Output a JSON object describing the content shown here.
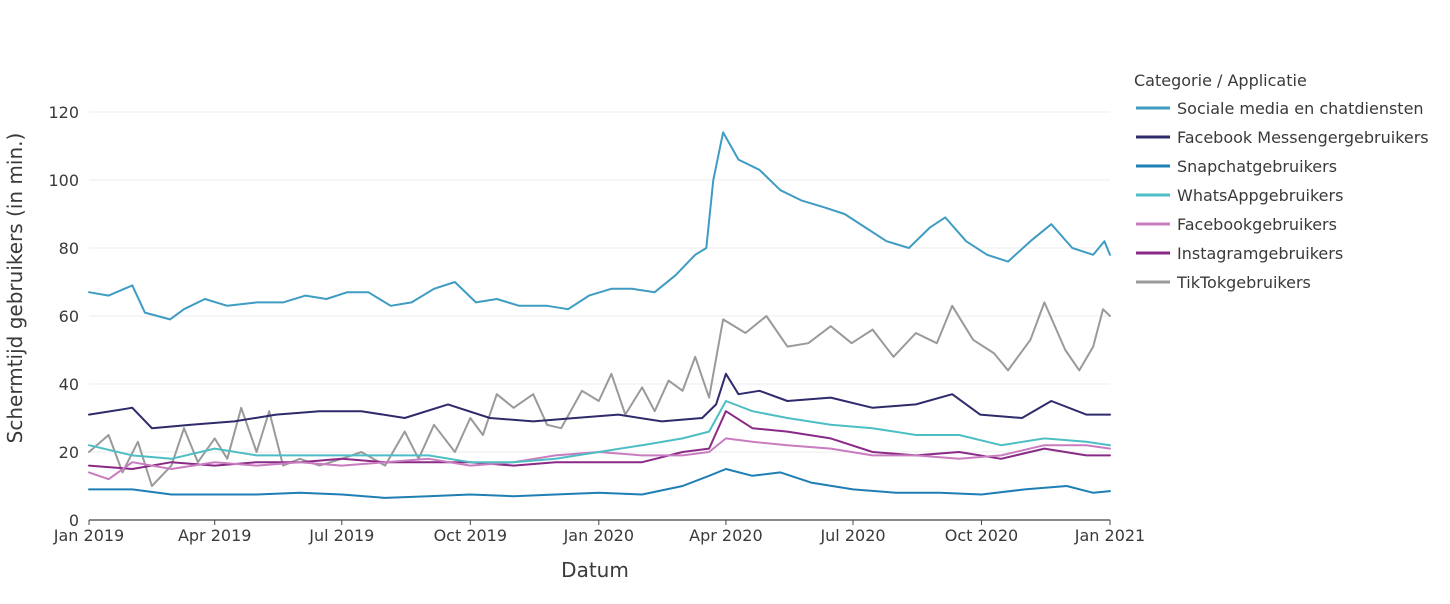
{
  "chart_data": {
    "type": "line",
    "xlabel": "Datum",
    "ylabel": "Schermtijd gebruikers (in min.)",
    "x_range": [
      "2019-01-01",
      "2021-01-01"
    ],
    "ylim": [
      0,
      120
    ],
    "y_ticks": [
      0,
      20,
      40,
      60,
      80,
      100,
      120
    ],
    "x_ticks": [
      {
        "date": "2019-01-01",
        "label": "Jan 2019"
      },
      {
        "date": "2019-04-01",
        "label": "Apr 2019"
      },
      {
        "date": "2019-07-01",
        "label": "Jul 2019"
      },
      {
        "date": "2019-10-01",
        "label": "Oct 2019"
      },
      {
        "date": "2020-01-01",
        "label": "Jan 2020"
      },
      {
        "date": "2020-04-01",
        "label": "Apr 2020"
      },
      {
        "date": "2020-07-01",
        "label": "Jul 2020"
      },
      {
        "date": "2020-10-01",
        "label": "Oct 2020"
      },
      {
        "date": "2021-01-01",
        "label": "Jan 2021"
      }
    ],
    "grid": true,
    "legend": {
      "title": "Categorie / Applicatie",
      "position": "right"
    },
    "series": [
      {
        "name": "Sociale media en chatdiensten",
        "color": "#3f9cc2",
        "points": [
          [
            "2019-01-01",
            67
          ],
          [
            "2019-01-15",
            66
          ],
          [
            "2019-02-01",
            69
          ],
          [
            "2019-02-10",
            61
          ],
          [
            "2019-02-28",
            59
          ],
          [
            "2019-03-10",
            62
          ],
          [
            "2019-03-25",
            65
          ],
          [
            "2019-04-10",
            63
          ],
          [
            "2019-05-01",
            64
          ],
          [
            "2019-05-20",
            64
          ],
          [
            "2019-06-05",
            66
          ],
          [
            "2019-06-20",
            65
          ],
          [
            "2019-07-05",
            67
          ],
          [
            "2019-07-20",
            67
          ],
          [
            "2019-08-05",
            63
          ],
          [
            "2019-08-20",
            64
          ],
          [
            "2019-09-05",
            68
          ],
          [
            "2019-09-20",
            70
          ],
          [
            "2019-10-05",
            64
          ],
          [
            "2019-10-20",
            65
          ],
          [
            "2019-11-05",
            63
          ],
          [
            "2019-11-25",
            63
          ],
          [
            "2019-12-10",
            62
          ],
          [
            "2019-12-25",
            66
          ],
          [
            "2020-01-10",
            68
          ],
          [
            "2020-01-25",
            68
          ],
          [
            "2020-02-10",
            67
          ],
          [
            "2020-02-25",
            72
          ],
          [
            "2020-03-10",
            78
          ],
          [
            "2020-03-18",
            80
          ],
          [
            "2020-03-23",
            100
          ],
          [
            "2020-03-30",
            114
          ],
          [
            "2020-04-10",
            106
          ],
          [
            "2020-04-25",
            103
          ],
          [
            "2020-05-10",
            97
          ],
          [
            "2020-05-25",
            94
          ],
          [
            "2020-06-10",
            92
          ],
          [
            "2020-06-25",
            90
          ],
          [
            "2020-07-10",
            86
          ],
          [
            "2020-07-25",
            82
          ],
          [
            "2020-08-10",
            80
          ],
          [
            "2020-08-25",
            86
          ],
          [
            "2020-09-05",
            89
          ],
          [
            "2020-09-20",
            82
          ],
          [
            "2020-10-05",
            78
          ],
          [
            "2020-10-20",
            76
          ],
          [
            "2020-11-05",
            82
          ],
          [
            "2020-11-20",
            87
          ],
          [
            "2020-12-05",
            80
          ],
          [
            "2020-12-20",
            78
          ],
          [
            "2020-12-28",
            82
          ],
          [
            "2021-01-01",
            78
          ]
        ]
      },
      {
        "name": "Facebook Messengergebruikers",
        "color": "#2e2a6b",
        "points": [
          [
            "2019-01-01",
            31
          ],
          [
            "2019-02-01",
            33
          ],
          [
            "2019-02-15",
            27
          ],
          [
            "2019-03-15",
            28
          ],
          [
            "2019-04-15",
            29
          ],
          [
            "2019-05-15",
            31
          ],
          [
            "2019-06-15",
            32
          ],
          [
            "2019-07-15",
            32
          ],
          [
            "2019-08-15",
            30
          ],
          [
            "2019-09-15",
            34
          ],
          [
            "2019-10-15",
            30
          ],
          [
            "2019-11-15",
            29
          ],
          [
            "2019-12-15",
            30
          ],
          [
            "2020-01-15",
            31
          ],
          [
            "2020-02-15",
            29
          ],
          [
            "2020-03-15",
            30
          ],
          [
            "2020-03-25",
            34
          ],
          [
            "2020-04-01",
            43
          ],
          [
            "2020-04-10",
            37
          ],
          [
            "2020-04-25",
            38
          ],
          [
            "2020-05-15",
            35
          ],
          [
            "2020-06-15",
            36
          ],
          [
            "2020-07-15",
            33
          ],
          [
            "2020-08-15",
            34
          ],
          [
            "2020-09-10",
            37
          ],
          [
            "2020-09-30",
            31
          ],
          [
            "2020-10-30",
            30
          ],
          [
            "2020-11-20",
            35
          ],
          [
            "2020-12-15",
            31
          ],
          [
            "2021-01-01",
            31
          ]
        ]
      },
      {
        "name": "Snapchatgebruikers",
        "color": "#1f7fb4",
        "points": [
          [
            "2019-01-01",
            9
          ],
          [
            "2019-02-01",
            9
          ],
          [
            "2019-03-01",
            7.5
          ],
          [
            "2019-04-01",
            7.5
          ],
          [
            "2019-05-01",
            7.5
          ],
          [
            "2019-06-01",
            8
          ],
          [
            "2019-07-01",
            7.5
          ],
          [
            "2019-08-01",
            6.5
          ],
          [
            "2019-09-01",
            7
          ],
          [
            "2019-10-01",
            7.5
          ],
          [
            "2019-11-01",
            7
          ],
          [
            "2019-12-01",
            7.5
          ],
          [
            "2020-01-01",
            8
          ],
          [
            "2020-02-01",
            7.5
          ],
          [
            "2020-03-01",
            10
          ],
          [
            "2020-03-20",
            13
          ],
          [
            "2020-04-01",
            15
          ],
          [
            "2020-04-20",
            13
          ],
          [
            "2020-05-10",
            14
          ],
          [
            "2020-06-01",
            11
          ],
          [
            "2020-07-01",
            9
          ],
          [
            "2020-08-01",
            8
          ],
          [
            "2020-09-01",
            8
          ],
          [
            "2020-10-01",
            7.5
          ],
          [
            "2020-11-01",
            9
          ],
          [
            "2020-12-01",
            10
          ],
          [
            "2020-12-20",
            8
          ],
          [
            "2021-01-01",
            8.5
          ]
        ]
      },
      {
        "name": "WhatsAppgebruikers",
        "color": "#4dbec4",
        "points": [
          [
            "2019-01-01",
            22
          ],
          [
            "2019-02-01",
            19
          ],
          [
            "2019-03-01",
            18
          ],
          [
            "2019-04-01",
            21
          ],
          [
            "2019-05-01",
            19
          ],
          [
            "2019-06-01",
            19
          ],
          [
            "2019-07-01",
            19
          ],
          [
            "2019-08-01",
            19
          ],
          [
            "2019-09-01",
            19
          ],
          [
            "2019-10-01",
            17
          ],
          [
            "2019-11-01",
            17
          ],
          [
            "2019-12-01",
            18
          ],
          [
            "2020-01-01",
            20
          ],
          [
            "2020-02-01",
            22
          ],
          [
            "2020-03-01",
            24
          ],
          [
            "2020-03-20",
            26
          ],
          [
            "2020-04-01",
            35
          ],
          [
            "2020-04-20",
            32
          ],
          [
            "2020-05-15",
            30
          ],
          [
            "2020-06-15",
            28
          ],
          [
            "2020-07-15",
            27
          ],
          [
            "2020-08-15",
            25
          ],
          [
            "2020-09-15",
            25
          ],
          [
            "2020-10-15",
            22
          ],
          [
            "2020-11-15",
            24
          ],
          [
            "2020-12-15",
            23
          ],
          [
            "2021-01-01",
            22
          ]
        ]
      },
      {
        "name": "Facebookgebruikers",
        "color": "#c97cbf",
        "points": [
          [
            "2019-01-01",
            14
          ],
          [
            "2019-01-15",
            12
          ],
          [
            "2019-02-01",
            17
          ],
          [
            "2019-03-01",
            15
          ],
          [
            "2019-04-01",
            17
          ],
          [
            "2019-05-01",
            16
          ],
          [
            "2019-06-01",
            17
          ],
          [
            "2019-07-01",
            16
          ],
          [
            "2019-08-01",
            17
          ],
          [
            "2019-09-01",
            18
          ],
          [
            "2019-10-01",
            16
          ],
          [
            "2019-11-01",
            17
          ],
          [
            "2019-12-01",
            19
          ],
          [
            "2020-01-01",
            20
          ],
          [
            "2020-02-01",
            19
          ],
          [
            "2020-03-01",
            19
          ],
          [
            "2020-03-20",
            20
          ],
          [
            "2020-04-01",
            24
          ],
          [
            "2020-04-20",
            23
          ],
          [
            "2020-05-15",
            22
          ],
          [
            "2020-06-15",
            21
          ],
          [
            "2020-07-15",
            19
          ],
          [
            "2020-08-15",
            19
          ],
          [
            "2020-09-15",
            18
          ],
          [
            "2020-10-15",
            19
          ],
          [
            "2020-11-15",
            22
          ],
          [
            "2020-12-15",
            22
          ],
          [
            "2021-01-01",
            21
          ]
        ]
      },
      {
        "name": "Instagramgebruikers",
        "color": "#8a2a86",
        "points": [
          [
            "2019-01-01",
            16
          ],
          [
            "2019-02-01",
            15
          ],
          [
            "2019-03-01",
            17
          ],
          [
            "2019-04-01",
            16
          ],
          [
            "2019-05-01",
            17
          ],
          [
            "2019-06-01",
            17
          ],
          [
            "2019-07-01",
            18
          ],
          [
            "2019-08-01",
            17
          ],
          [
            "2019-09-01",
            17
          ],
          [
            "2019-10-01",
            17
          ],
          [
            "2019-11-01",
            16
          ],
          [
            "2019-12-01",
            17
          ],
          [
            "2020-01-01",
            17
          ],
          [
            "2020-02-01",
            17
          ],
          [
            "2020-03-01",
            20
          ],
          [
            "2020-03-20",
            21
          ],
          [
            "2020-04-01",
            32
          ],
          [
            "2020-04-20",
            27
          ],
          [
            "2020-05-15",
            26
          ],
          [
            "2020-06-15",
            24
          ],
          [
            "2020-07-15",
            20
          ],
          [
            "2020-08-15",
            19
          ],
          [
            "2020-09-15",
            20
          ],
          [
            "2020-10-15",
            18
          ],
          [
            "2020-11-15",
            21
          ],
          [
            "2020-12-15",
            19
          ],
          [
            "2021-01-01",
            19
          ]
        ]
      },
      {
        "name": "TikTokgebruikers",
        "color": "#9a9a9a",
        "points": [
          [
            "2019-01-01",
            20
          ],
          [
            "2019-01-15",
            25
          ],
          [
            "2019-01-25",
            14
          ],
          [
            "2019-02-05",
            23
          ],
          [
            "2019-02-15",
            10
          ],
          [
            "2019-03-01",
            16
          ],
          [
            "2019-03-10",
            27
          ],
          [
            "2019-03-20",
            17
          ],
          [
            "2019-04-01",
            24
          ],
          [
            "2019-04-10",
            18
          ],
          [
            "2019-04-20",
            33
          ],
          [
            "2019-05-01",
            20
          ],
          [
            "2019-05-10",
            32
          ],
          [
            "2019-05-20",
            16
          ],
          [
            "2019-06-01",
            18
          ],
          [
            "2019-06-15",
            16
          ],
          [
            "2019-07-01",
            18
          ],
          [
            "2019-07-15",
            20
          ],
          [
            "2019-08-01",
            16
          ],
          [
            "2019-08-15",
            26
          ],
          [
            "2019-08-25",
            18
          ],
          [
            "2019-09-05",
            28
          ],
          [
            "2019-09-20",
            20
          ],
          [
            "2019-10-01",
            30
          ],
          [
            "2019-10-10",
            25
          ],
          [
            "2019-10-20",
            37
          ],
          [
            "2019-11-01",
            33
          ],
          [
            "2019-11-15",
            37
          ],
          [
            "2019-11-25",
            28
          ],
          [
            "2019-12-05",
            27
          ],
          [
            "2019-12-20",
            38
          ],
          [
            "2020-01-01",
            35
          ],
          [
            "2020-01-10",
            43
          ],
          [
            "2020-01-20",
            31
          ],
          [
            "2020-02-01",
            39
          ],
          [
            "2020-02-10",
            32
          ],
          [
            "2020-02-20",
            41
          ],
          [
            "2020-03-01",
            38
          ],
          [
            "2020-03-10",
            48
          ],
          [
            "2020-03-20",
            36
          ],
          [
            "2020-03-30",
            59
          ],
          [
            "2020-04-15",
            55
          ],
          [
            "2020-04-30",
            60
          ],
          [
            "2020-05-15",
            51
          ],
          [
            "2020-05-30",
            52
          ],
          [
            "2020-06-15",
            57
          ],
          [
            "2020-06-30",
            52
          ],
          [
            "2020-07-15",
            56
          ],
          [
            "2020-07-30",
            48
          ],
          [
            "2020-08-15",
            55
          ],
          [
            "2020-08-30",
            52
          ],
          [
            "2020-09-10",
            63
          ],
          [
            "2020-09-25",
            53
          ],
          [
            "2020-10-10",
            49
          ],
          [
            "2020-10-20",
            44
          ],
          [
            "2020-11-05",
            53
          ],
          [
            "2020-11-15",
            64
          ],
          [
            "2020-11-30",
            50
          ],
          [
            "2020-12-10",
            44
          ],
          [
            "2020-12-20",
            51
          ],
          [
            "2020-12-27",
            62
          ],
          [
            "2021-01-01",
            60
          ]
        ]
      }
    ]
  }
}
